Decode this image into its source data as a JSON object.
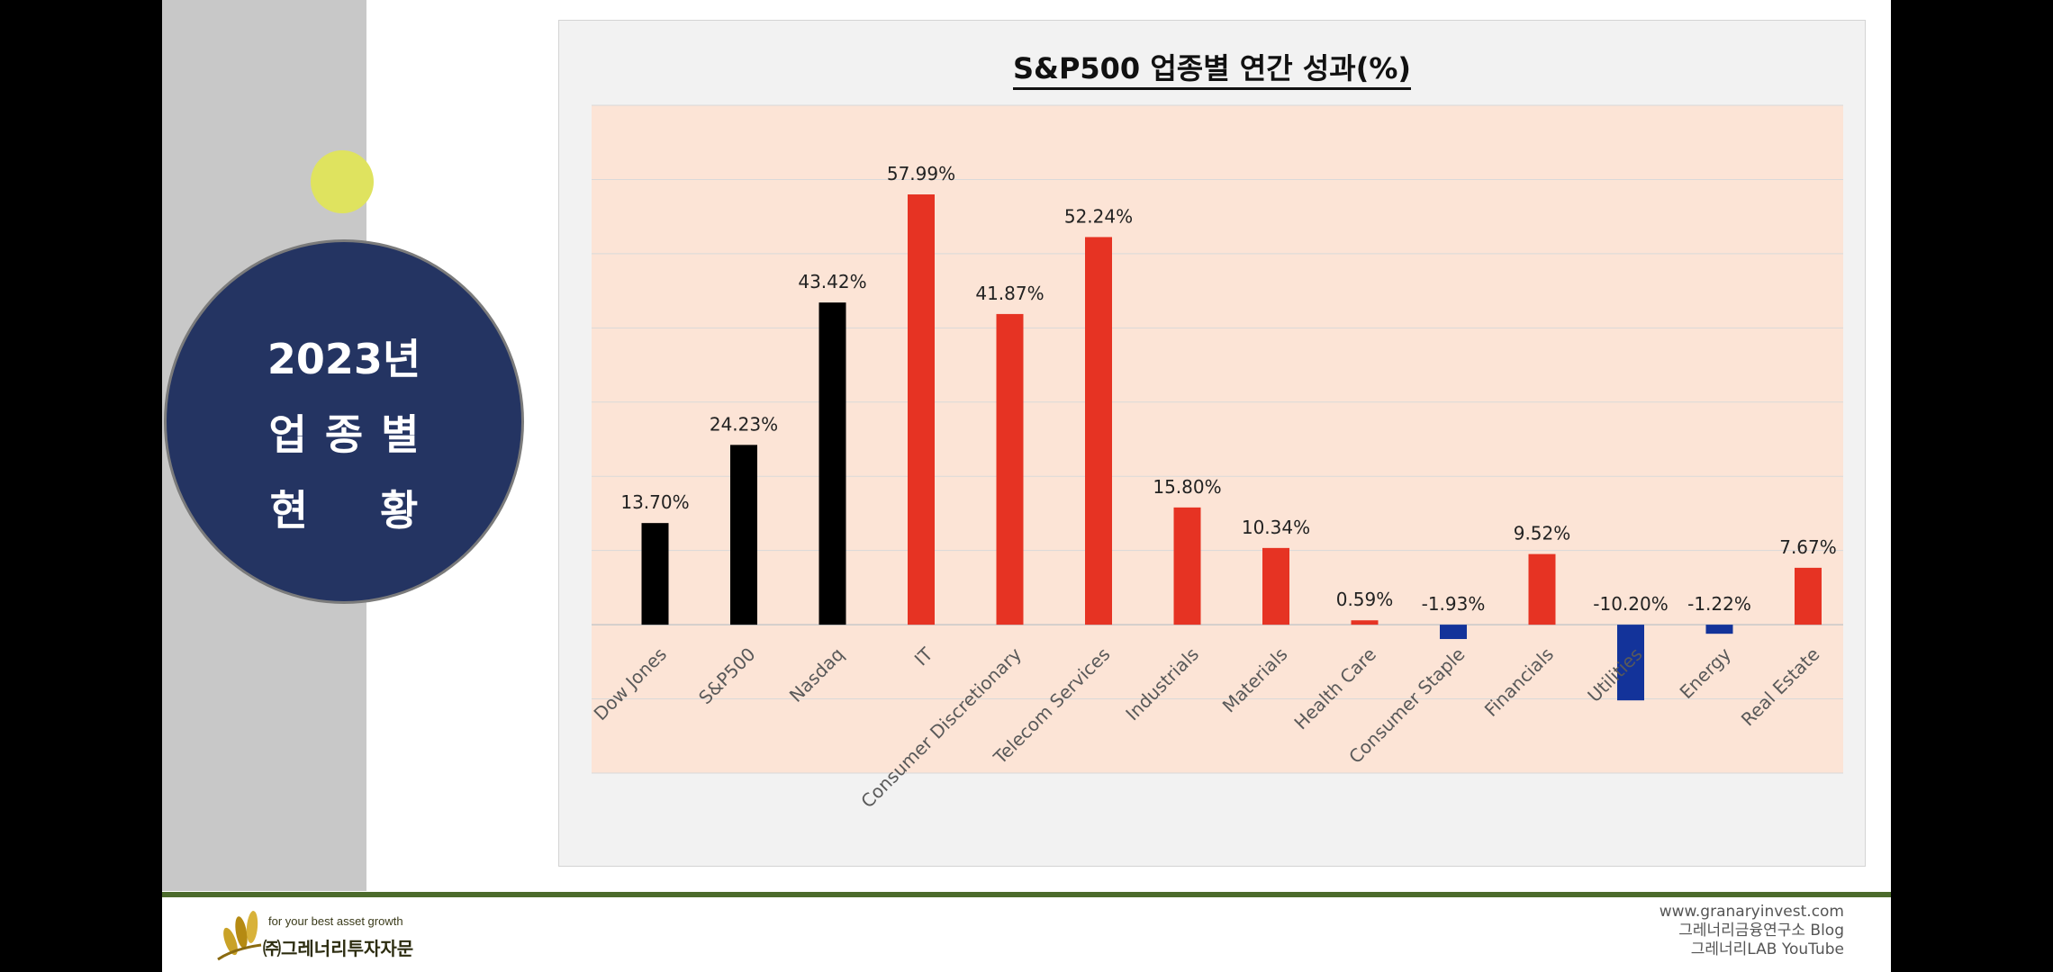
{
  "sidebar": {
    "line1": "2023년",
    "line2": "업종별",
    "line3": "현황"
  },
  "footer": {
    "tagline": "for your best asset growth",
    "company": "㈜그레너리투자자문",
    "links": [
      "www.granaryinvest.com",
      "그레너리금융연구소 Blog",
      "그레너리LAB YouTube"
    ]
  },
  "colors": {
    "index_bar": "#000000",
    "positive_bar": "#e63323",
    "negative_bar": "#13339a",
    "plot_bg": "#fce4d6",
    "sidebar_circle": "#243462"
  },
  "chart_data": {
    "type": "bar",
    "title": "S&P500 업종별 연간 성과(%)",
    "xlabel": "",
    "ylabel": "",
    "ylim": [
      -20,
      70
    ],
    "grid": true,
    "categories": [
      "Dow Jones",
      "S&P500",
      "Nasdaq",
      "IT",
      "Consumer Discretionary",
      "Telecom Services",
      "Industrials",
      "Materials",
      "Health Care",
      "Consumer Staple",
      "Financials",
      "Utilities",
      "Energy",
      "Real Estate"
    ],
    "values": [
      13.7,
      24.23,
      43.42,
      57.99,
      41.87,
      52.24,
      15.8,
      10.34,
      0.59,
      -1.93,
      9.52,
      -10.2,
      -1.22,
      7.67
    ],
    "labels": [
      "13.70%",
      "24.23%",
      "43.42%",
      "57.99%",
      "41.87%",
      "52.24%",
      "15.80%",
      "10.34%",
      "0.59%",
      "-1.93%",
      "9.52%",
      "-10.20%",
      "-1.22%",
      "7.67%"
    ],
    "bar_colors": [
      "#000000",
      "#000000",
      "#000000",
      "#e63323",
      "#e63323",
      "#e63323",
      "#e63323",
      "#e63323",
      "#e63323",
      "#13339a",
      "#e63323",
      "#13339a",
      "#13339a",
      "#e63323"
    ]
  }
}
